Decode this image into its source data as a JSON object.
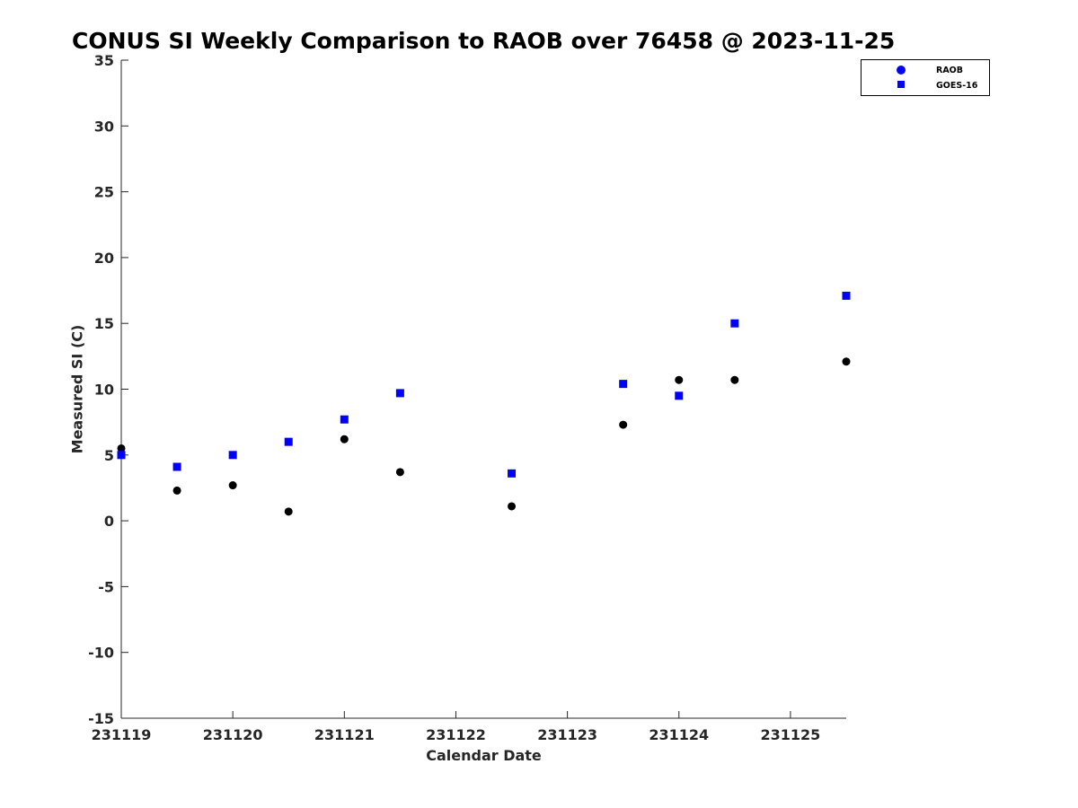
{
  "chart_data": {
    "type": "scatter",
    "title": "CONUS SI Weekly Comparison to RAOB over 76458 @ 2023-11-25",
    "xlabel": "Calendar Date",
    "ylabel": "Measured SI (C)",
    "xlim": [
      "2023-11-19",
      "2023-11-25 12:00"
    ],
    "ylim": [
      -15,
      35
    ],
    "yticks": [
      -15,
      -10,
      -5,
      0,
      5,
      10,
      15,
      20,
      25,
      30,
      35
    ],
    "xticks": [
      {
        "date": "2023-11-19",
        "label": "231119"
      },
      {
        "date": "2023-11-20",
        "label": "231120"
      },
      {
        "date": "2023-11-21",
        "label": "231121"
      },
      {
        "date": "2023-11-22",
        "label": "231122"
      },
      {
        "date": "2023-11-23",
        "label": "231123"
      },
      {
        "date": "2023-11-24",
        "label": "231124"
      },
      {
        "date": "2023-11-25",
        "label": "231125"
      }
    ],
    "grid": false,
    "legend_position": "top-right",
    "series": [
      {
        "name": "RAOB",
        "marker": "circle",
        "color": "#000000",
        "legend_color": "#0000ff",
        "points": [
          {
            "x": "2023-11-19 00:00",
            "y": 5.5
          },
          {
            "x": "2023-11-19 12:00",
            "y": 2.3
          },
          {
            "x": "2023-11-20 00:00",
            "y": 2.7
          },
          {
            "x": "2023-11-20 12:00",
            "y": 0.7
          },
          {
            "x": "2023-11-21 00:00",
            "y": 6.2
          },
          {
            "x": "2023-11-21 12:00",
            "y": 3.7
          },
          {
            "x": "2023-11-22 12:00",
            "y": 1.1
          },
          {
            "x": "2023-11-23 12:00",
            "y": 7.3
          },
          {
            "x": "2023-11-24 00:00",
            "y": 10.7
          },
          {
            "x": "2023-11-24 12:00",
            "y": 10.7
          },
          {
            "x": "2023-11-25 12:00",
            "y": 12.1
          }
        ]
      },
      {
        "name": "GOES-16",
        "marker": "square",
        "color": "#0000ff",
        "legend_color": "#0000ff",
        "points": [
          {
            "x": "2023-11-19 00:00",
            "y": 5.0
          },
          {
            "x": "2023-11-19 12:00",
            "y": 4.1
          },
          {
            "x": "2023-11-20 00:00",
            "y": 5.0
          },
          {
            "x": "2023-11-20 12:00",
            "y": 6.0
          },
          {
            "x": "2023-11-21 00:00",
            "y": 7.7
          },
          {
            "x": "2023-11-21 12:00",
            "y": 9.7
          },
          {
            "x": "2023-11-22 12:00",
            "y": 3.6
          },
          {
            "x": "2023-11-23 12:00",
            "y": 10.4
          },
          {
            "x": "2023-11-24 00:00",
            "y": 9.5
          },
          {
            "x": "2023-11-24 12:00",
            "y": 15.0
          },
          {
            "x": "2023-11-25 12:00",
            "y": 17.1
          }
        ]
      }
    ]
  }
}
